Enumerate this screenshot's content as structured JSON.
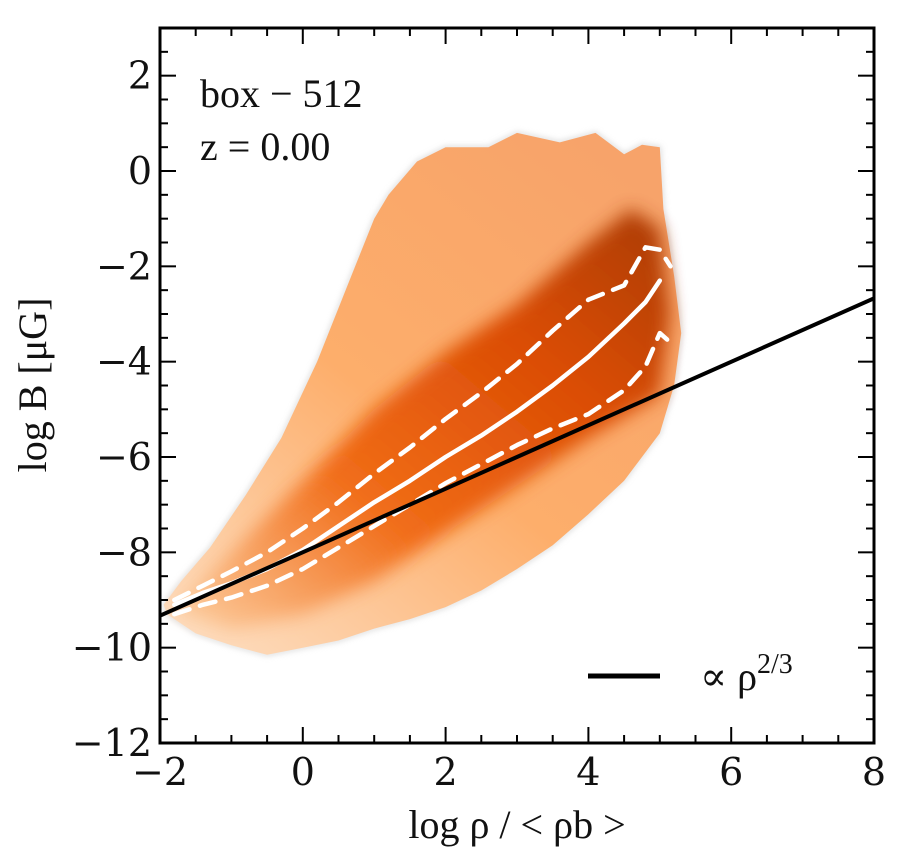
{
  "chart_data": {
    "type": "heatmap",
    "title": "",
    "xlabel": "log ρ / < ρb >",
    "ylabel": "log B [μG]",
    "xlim": [
      -2,
      8
    ],
    "ylim": [
      -12,
      3
    ],
    "x_ticks": [
      -2,
      0,
      2,
      4,
      6,
      8
    ],
    "y_ticks": [
      -12,
      -10,
      -8,
      -6,
      -4,
      -2,
      0,
      2
    ],
    "x_tick_labels": [
      "−2",
      "0",
      "2",
      "4",
      "6",
      "8"
    ],
    "y_tick_labels": [
      "−12",
      "−10",
      "−8",
      "−6",
      "−4",
      "−2",
      "0",
      "2"
    ],
    "annotations": {
      "run": "box − 512",
      "redshift": "z = 0.00"
    },
    "legend": {
      "position": "bottom-right",
      "label": "∝ ρ",
      "exponent": "2/3"
    },
    "colors": {
      "density_core": "#a63603",
      "density_mid": "#e6550d",
      "density_edge": "#fdae6b",
      "median": "#ffffff",
      "reference": "#000000"
    },
    "density_region": {
      "outline": [
        [
          -1.9,
          -9.3
        ],
        [
          -1.5,
          -9.7
        ],
        [
          -1.0,
          -9.95
        ],
        [
          -0.5,
          -10.15
        ],
        [
          0,
          -10.0
        ],
        [
          0.5,
          -9.85
        ],
        [
          1,
          -9.6
        ],
        [
          1.5,
          -9.4
        ],
        [
          2,
          -9.15
        ],
        [
          2.5,
          -8.8
        ],
        [
          3,
          -8.35
        ],
        [
          3.5,
          -7.85
        ],
        [
          4,
          -7.2
        ],
        [
          4.5,
          -6.5
        ],
        [
          5,
          -5.5
        ],
        [
          5.2,
          -4.5
        ],
        [
          5.3,
          -3.4
        ],
        [
          5.2,
          -2.2
        ],
        [
          5.05,
          -0.8
        ],
        [
          5.0,
          0.5
        ],
        [
          4.75,
          0.55
        ],
        [
          4.5,
          0.35
        ],
        [
          4.1,
          0.8
        ],
        [
          3.6,
          0.6
        ],
        [
          3.0,
          0.8
        ],
        [
          2.6,
          0.5
        ],
        [
          2.0,
          0.5
        ],
        [
          1.6,
          0.2
        ],
        [
          1.2,
          -0.5
        ],
        [
          1.0,
          -1.0
        ],
        [
          0.6,
          -2.5
        ],
        [
          0.2,
          -4.0
        ],
        [
          -0.3,
          -5.6
        ],
        [
          -0.8,
          -6.8
        ],
        [
          -1.3,
          -7.9
        ],
        [
          -1.7,
          -8.6
        ],
        [
          -1.95,
          -9.1
        ]
      ],
      "core": [
        [
          -1.8,
          -9.2
        ],
        [
          -1.0,
          -9.6
        ],
        [
          0,
          -9.3
        ],
        [
          1,
          -8.6
        ],
        [
          2,
          -7.6
        ],
        [
          3,
          -6.6
        ],
        [
          4,
          -5.6
        ],
        [
          5.0,
          -4.7
        ],
        [
          5.15,
          -3.0
        ],
        [
          5.0,
          -1.2
        ],
        [
          4.6,
          -0.8
        ],
        [
          4.0,
          -1.5
        ],
        [
          3,
          -2.8
        ],
        [
          2,
          -3.8
        ],
        [
          1,
          -5.0
        ],
        [
          0,
          -6.5
        ],
        [
          -1,
          -8.0
        ]
      ]
    },
    "series": [
      {
        "name": "median",
        "style": "solid",
        "color": "#ffffff",
        "x": [
          -1.8,
          -1.4,
          -1.0,
          -0.5,
          0,
          0.5,
          1,
          1.5,
          2,
          2.5,
          3,
          3.5,
          4,
          4.5,
          4.8,
          5.0
        ],
        "y": [
          -9.1,
          -8.85,
          -8.65,
          -8.35,
          -7.95,
          -7.45,
          -6.95,
          -6.5,
          -6.0,
          -5.55,
          -5.05,
          -4.5,
          -3.9,
          -3.2,
          -2.75,
          -2.3
        ]
      },
      {
        "name": "upper quartile",
        "style": "dashed",
        "color": "#ffffff",
        "x": [
          -1.8,
          -1.4,
          -1.0,
          -0.5,
          0,
          0.5,
          1,
          1.5,
          2,
          2.5,
          3,
          3.5,
          4,
          4.5,
          4.8,
          5.0,
          5.15
        ],
        "y": [
          -9.0,
          -8.7,
          -8.4,
          -8.0,
          -7.5,
          -6.95,
          -6.35,
          -5.8,
          -5.2,
          -4.65,
          -4.05,
          -3.35,
          -2.7,
          -2.4,
          -1.6,
          -1.65,
          -2.0
        ]
      },
      {
        "name": "lower quartile",
        "style": "dashed",
        "color": "#ffffff",
        "x": [
          -1.8,
          -1.4,
          -1.0,
          -0.5,
          0,
          0.5,
          1,
          1.5,
          2,
          2.5,
          3,
          3.5,
          4,
          4.5,
          4.8,
          5.0,
          5.15
        ],
        "y": [
          -9.3,
          -9.1,
          -8.95,
          -8.7,
          -8.35,
          -7.9,
          -7.45,
          -7.0,
          -6.55,
          -6.15,
          -5.75,
          -5.4,
          -5.1,
          -4.6,
          -4.1,
          -3.4,
          -3.6
        ]
      },
      {
        "name": "∝ ρ^{2/3}",
        "style": "solid",
        "color": "#000000",
        "x": [
          -2,
          8
        ],
        "y": [
          -9.33,
          -2.67
        ]
      }
    ]
  }
}
